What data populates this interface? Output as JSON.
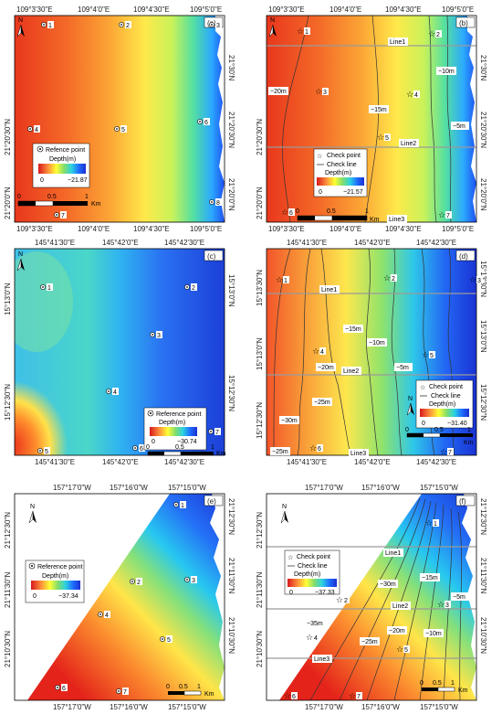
{
  "figure": {
    "panels": [
      {
        "id": "a",
        "tag": "(a)",
        "top_ticks": [
          "109°3'30\"E",
          "109°4'0\"E",
          "109°4'30\"E",
          "109°5'0\"E"
        ],
        "bottom_ticks": [
          "109°3'30\"E",
          "109°4'0\"E",
          "109°4'30\"E",
          "109°5'0\"E"
        ],
        "left_ticks": [
          "21°20'30\"N",
          "21°20'0\"N"
        ],
        "right_ticks": [
          "21°30'N",
          "21°20'30\"N",
          "21°20'0\"N"
        ],
        "legend": {
          "marker": "Refence point",
          "title": "Depth(m)",
          "min": "0",
          "max": "−21.87",
          "scale": [
            "0",
            "0.5",
            "1"
          ],
          "unit": "Km"
        },
        "points": [
          "1",
          "2",
          "3",
          "4",
          "5",
          "6",
          "7",
          "8"
        ]
      },
      {
        "id": "b",
        "tag": "(b)",
        "top_ticks": [
          "109°3'30\"E",
          "109°4'0\"E",
          "109°4'30\"E",
          "109°5'0\"E"
        ],
        "bottom_ticks": [
          "109°3'30\"E",
          "109°4'0\"E",
          "109°4'30\"E",
          "109°5'0\"E"
        ],
        "left_ticks": [
          "21°20'30\"N",
          "21°20'0\"N"
        ],
        "right_ticks": [
          "21°30'N",
          "21°20'30\"N",
          "21°20'0\"N"
        ],
        "legend": {
          "marker": "Check point",
          "line": "Check line",
          "title": "Depth(m)",
          "min": "0",
          "max": "−21.57",
          "scale": [
            "0",
            "0.5",
            "1"
          ],
          "unit": "Km"
        },
        "lines": [
          "Line1",
          "Line2",
          "Line3"
        ],
        "contours": [
          "−20m",
          "−15m",
          "−10m",
          "−5m"
        ],
        "points": [
          "1",
          "2",
          "3",
          "4",
          "5",
          "6",
          "7"
        ]
      },
      {
        "id": "c",
        "tag": "(c)",
        "top_ticks": [
          "145°41'30\"E",
          "145°42'0\"E",
          "145°42'30\"E"
        ],
        "bottom_ticks": [
          "145°41'30\"E",
          "145°42'0\"E",
          "145°42'30\"E"
        ],
        "left_ticks": [
          "15°13'0\"N",
          "15°12'30\"N"
        ],
        "right_ticks": [
          "15°13'0\"N",
          "15°12'30\"N"
        ],
        "legend": {
          "marker": "Reference point",
          "title": "Depth(m)",
          "min": "0",
          "max": "−30.74",
          "scale": [
            "0",
            "0.5",
            "1"
          ],
          "unit": "Km"
        },
        "points": [
          "1",
          "2",
          "3",
          "4",
          "5",
          "6",
          "7"
        ]
      },
      {
        "id": "d",
        "tag": "(d)",
        "top_ticks": [
          "145°41'30\"E",
          "145°42'0\"E",
          "145°42'30\"E"
        ],
        "bottom_ticks": [
          "145°41'30\"E",
          "145°42'0\"E",
          "145°42'30\"E"
        ],
        "left_ticks": [
          "15°13'30\"N",
          "15°13'0\"N",
          "15°12'30\"N"
        ],
        "right_ticks": [
          "15°13'30\"N",
          "15°13'0\"N",
          "15°12'30\"N"
        ],
        "legend": {
          "marker": "Check point",
          "line": "Check line",
          "title": "Depth(m)",
          "min": "0",
          "max": "−31.40",
          "scale": [
            "0",
            "0.5",
            "1"
          ],
          "unit": "Km"
        },
        "lines": [
          "Line1",
          "Line2",
          "Line3"
        ],
        "contours": [
          "−30m",
          "−25m",
          "−20m",
          "−15m",
          "−10m",
          "−5m",
          "−25m"
        ],
        "points": [
          "1",
          "2",
          "3",
          "4",
          "5",
          "6",
          "7"
        ]
      },
      {
        "id": "e",
        "tag": "(e)",
        "top_ticks": [
          "157°17'0\"W",
          "157°16'0\"W",
          "157°15'0\"W"
        ],
        "bottom_ticks": [
          "157°17'0\"W",
          "157°16'0\"W",
          "157°15'0\"W"
        ],
        "left_ticks": [
          "21°12'30\"N",
          "21°11'30\"N",
          "21°10'30\"N"
        ],
        "right_ticks": [
          "21°12'30\"N",
          "21°11'30\"N",
          "21°10'30\"N"
        ],
        "legend": {
          "marker": "Reference point",
          "title": "Depth(m)",
          "min": "0",
          "max": "−37.34",
          "scale": [
            "0",
            "0.5",
            "1"
          ],
          "unit": "Km"
        },
        "points": [
          "1",
          "2",
          "3",
          "4",
          "5",
          "6",
          "7"
        ]
      },
      {
        "id": "f",
        "tag": "(f)",
        "top_ticks": [
          "157°17'0\"W",
          "157°16'0\"W",
          "157°15'0\"W"
        ],
        "bottom_ticks": [
          "157°17'0\"W",
          "157°16'0\"W",
          "157°15'0\"W"
        ],
        "left_ticks": [
          "21°12'30\"N",
          "21°11'30\"N",
          "21°10'30\"N"
        ],
        "right_ticks": [
          "21°12'30\"N",
          "21°11'30\"N",
          "21°10'30\"N"
        ],
        "legend": {
          "marker": "Check point",
          "line": "Check line",
          "title": "Depth(m)",
          "min": "0",
          "max": "−37.33",
          "scale": [
            "0",
            "0.5",
            "1"
          ],
          "unit": "Km"
        },
        "lines": [
          "Line1",
          "Line2",
          "Line3"
        ],
        "contours": [
          "−35m",
          "−30m",
          "−25m",
          "−20m",
          "−15m",
          "−10m",
          "−5m"
        ],
        "points": [
          "1",
          "2",
          "3",
          "4",
          "5",
          "6",
          "7"
        ]
      }
    ],
    "north": "N",
    "colors": {
      "ramp": [
        "#d7191c",
        "#fd8d3c",
        "#ffff33",
        "#7fdc6f",
        "#2bd3e0",
        "#1f6fff",
        "#1a2fd0"
      ]
    }
  }
}
